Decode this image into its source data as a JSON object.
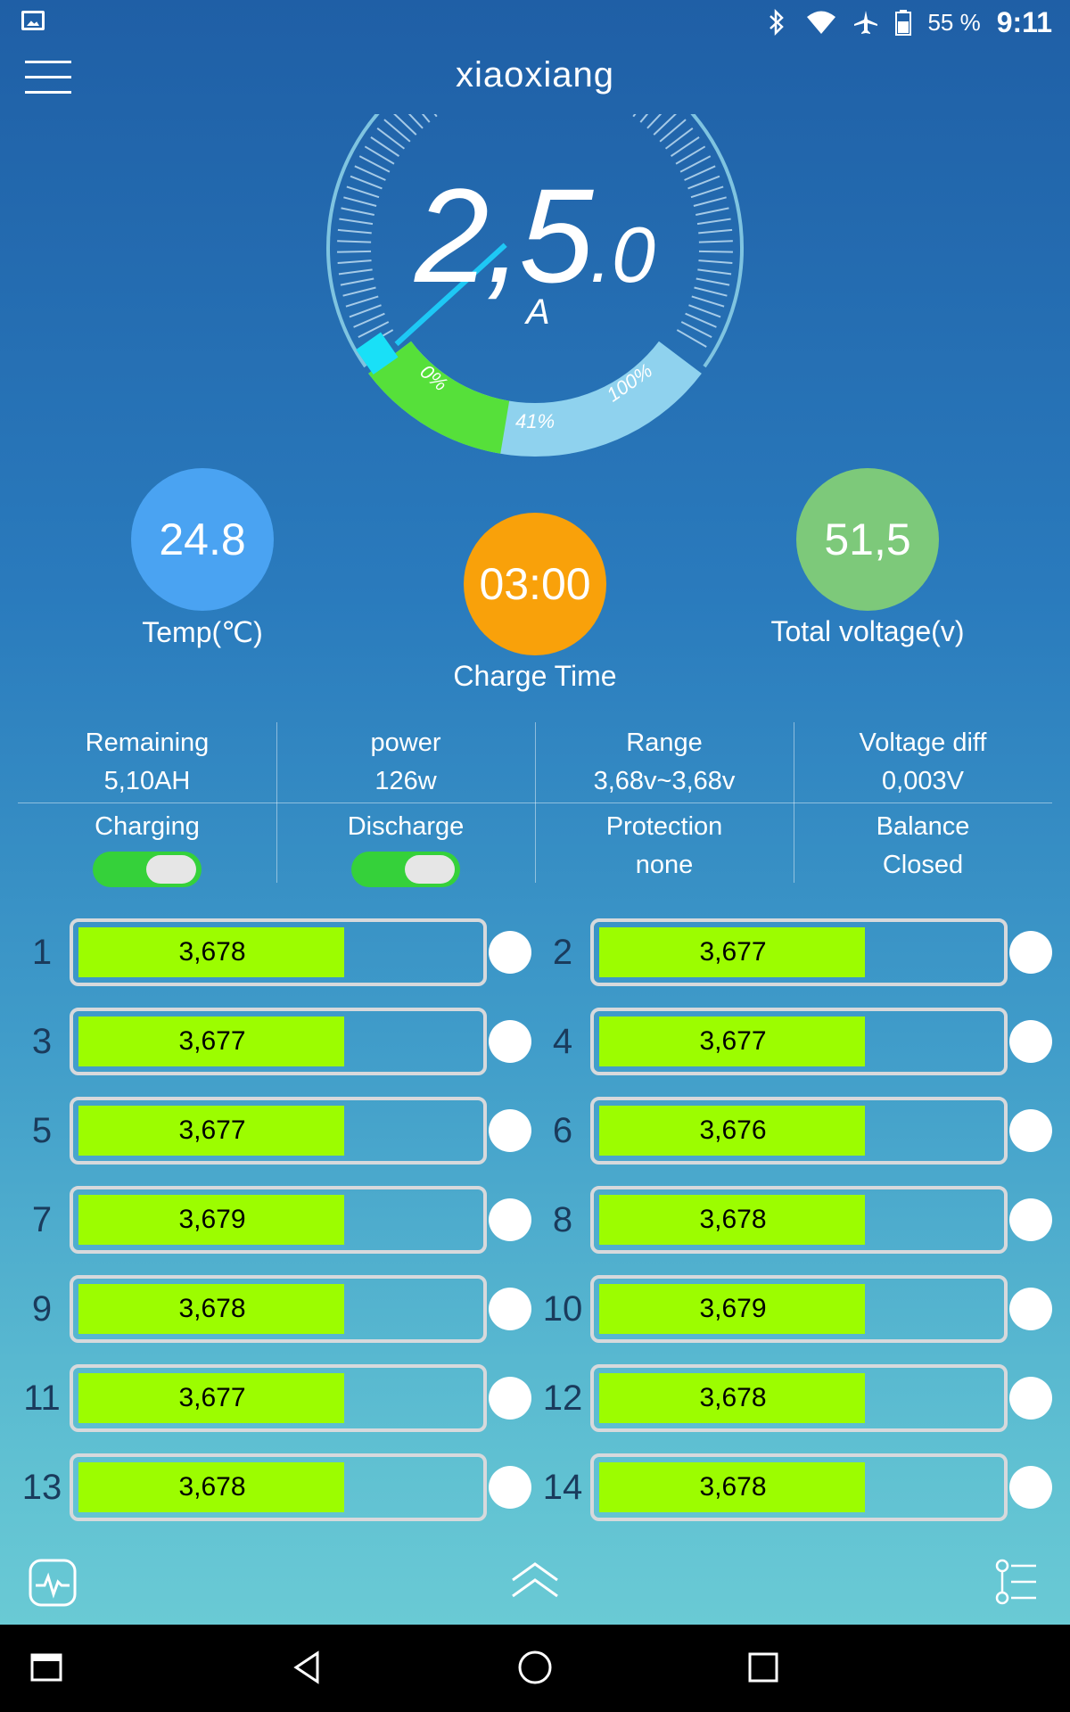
{
  "status_bar": {
    "battery_percent": "55 %",
    "time": "9:11"
  },
  "header": {
    "title": "xiaoxiang"
  },
  "gauge": {
    "value_int": "2,5",
    "value_dec": ".0",
    "unit": "A",
    "scale_start": "0%",
    "scale_mid": "41%",
    "scale_end": "100%",
    "fill_fraction": 0.41
  },
  "stats": {
    "temp": {
      "value": "24.8",
      "label": "Temp(℃)"
    },
    "charge_time": {
      "value": "03:00",
      "label": "Charge Time"
    },
    "total_voltage": {
      "value": "51,5",
      "label": "Total voltage(v)"
    }
  },
  "info": {
    "remaining": {
      "label": "Remaining",
      "value": "5,10AH"
    },
    "power": {
      "label": "power",
      "value": "126w"
    },
    "range": {
      "label": "Range",
      "value": "3,68v~3,68v"
    },
    "voltage_diff": {
      "label": "Voltage diff",
      "value": "0,003V"
    },
    "charging": {
      "label": "Charging",
      "on": true
    },
    "discharge": {
      "label": "Discharge",
      "on": true
    },
    "protection": {
      "label": "Protection",
      "value": "none"
    },
    "balance": {
      "label": "Balance",
      "value": "Closed"
    }
  },
  "cells": [
    {
      "num": "1",
      "voltage": "3,678",
      "fill": 0.66
    },
    {
      "num": "2",
      "voltage": "3,677",
      "fill": 0.66
    },
    {
      "num": "3",
      "voltage": "3,677",
      "fill": 0.66
    },
    {
      "num": "4",
      "voltage": "3,677",
      "fill": 0.66
    },
    {
      "num": "5",
      "voltage": "3,677",
      "fill": 0.66
    },
    {
      "num": "6",
      "voltage": "3,676",
      "fill": 0.66
    },
    {
      "num": "7",
      "voltage": "3,679",
      "fill": 0.66
    },
    {
      "num": "8",
      "voltage": "3,678",
      "fill": 0.66
    },
    {
      "num": "9",
      "voltage": "3,678",
      "fill": 0.66
    },
    {
      "num": "10",
      "voltage": "3,679",
      "fill": 0.66
    },
    {
      "num": "11",
      "voltage": "3,677",
      "fill": 0.66
    },
    {
      "num": "12",
      "voltage": "3,678",
      "fill": 0.66
    },
    {
      "num": "13",
      "voltage": "3,678",
      "fill": 0.66
    },
    {
      "num": "14",
      "voltage": "3,678",
      "fill": 0.66
    }
  ],
  "icons": {
    "bottom_left": "waveform-icon",
    "bottom_center": "double-chevron-up-icon",
    "bottom_right": "settings-list-icon"
  },
  "colors": {
    "cell_fill": "#9cfd00",
    "temp_circle": "#4aa3f2",
    "time_circle": "#f9a10a",
    "voltage_circle": "#7dc97a",
    "toggle_on": "#35d13a"
  }
}
